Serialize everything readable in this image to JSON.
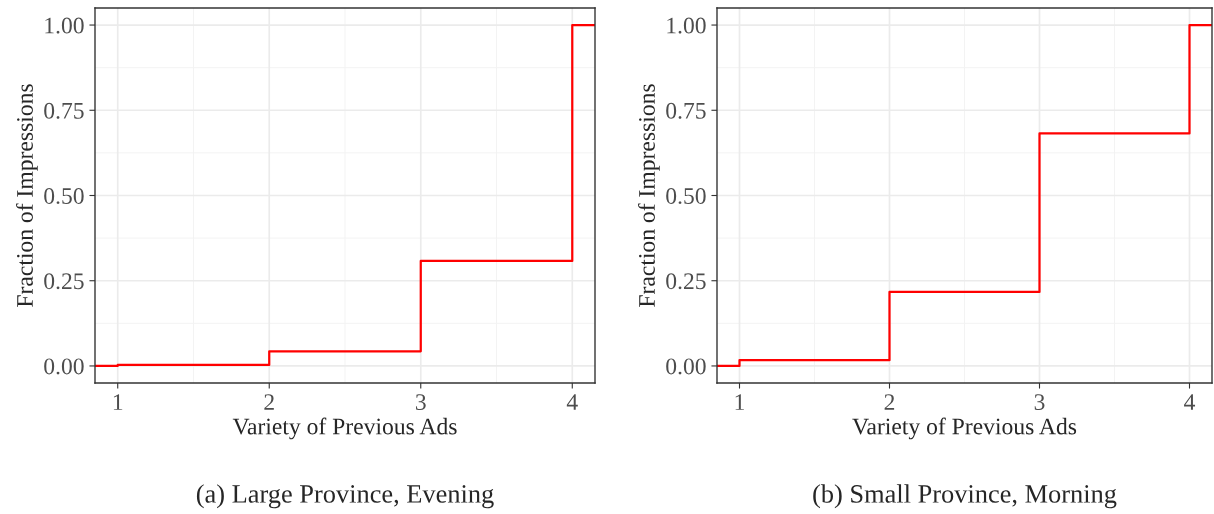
{
  "chart_data": [
    {
      "type": "step",
      "xlabel": "Variety of Previous Ads",
      "ylabel": "Fraction of Impressions",
      "annotations": [
        "(a) Large Province, Evening"
      ],
      "x": [
        0.85,
        1,
        2,
        3,
        4,
        4.15
      ],
      "series": [
        {
          "color": "#ff0000",
          "values": [
            0,
            0.003,
            0.043,
            0.308,
            1,
            1
          ]
        }
      ],
      "xlim": [
        0.85,
        4.15
      ],
      "xticks": [
        1,
        2,
        3,
        4
      ],
      "ylim": [
        -0.05,
        1.05
      ],
      "yticks": [
        {
          "value": 0,
          "label": "0.00"
        },
        {
          "value": 0.25,
          "label": "0.25"
        },
        {
          "value": 0.5,
          "label": "0.50"
        },
        {
          "value": 0.75,
          "label": "0.75"
        },
        {
          "value": 1,
          "label": "1.00"
        }
      ],
      "grid": true
    },
    {
      "type": "step",
      "xlabel": "Variety of Previous Ads",
      "ylabel": "Fraction of Impressions",
      "annotations": [
        "(b) Small Province, Morning"
      ],
      "x": [
        0.85,
        1,
        2,
        3,
        4,
        4.15
      ],
      "series": [
        {
          "color": "#ff0000",
          "values": [
            0,
            0.017,
            0.217,
            0.682,
            1,
            1
          ]
        }
      ],
      "xlim": [
        0.85,
        4.15
      ],
      "xticks": [
        1,
        2,
        3,
        4
      ],
      "ylim": [
        -0.05,
        1.05
      ],
      "yticks": [
        {
          "value": 0,
          "label": "0.00"
        },
        {
          "value": 0.25,
          "label": "0.25"
        },
        {
          "value": 0.5,
          "label": "0.50"
        },
        {
          "value": 0.75,
          "label": "0.75"
        },
        {
          "value": 1,
          "label": "1.00"
        }
      ],
      "grid": true
    }
  ]
}
